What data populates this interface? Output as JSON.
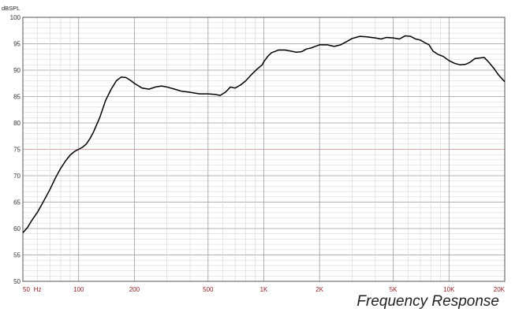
{
  "chart_data": {
    "type": "line",
    "xscale": "log",
    "xlim": [
      50,
      20000
    ],
    "ylim": [
      50,
      100
    ],
    "grid": true,
    "ylabel": "dBSPL",
    "yticks": [
      "50",
      "55",
      "60",
      "65",
      "70",
      "75",
      "80",
      "85",
      "90",
      "95",
      "100"
    ],
    "xticks": [
      {
        "value": 50,
        "label": "50"
      },
      {
        "value": 60,
        "label": "Hz"
      },
      {
        "value": 100,
        "label": "100"
      },
      {
        "value": 200,
        "label": "200"
      },
      {
        "value": 500,
        "label": "500"
      },
      {
        "value": 1000,
        "label": "1K"
      },
      {
        "value": 2000,
        "label": "2K"
      },
      {
        "value": 5000,
        "label": "5K"
      },
      {
        "value": 10000,
        "label": "10K"
      },
      {
        "value": 20000,
        "label": "20K"
      }
    ],
    "reference_line": 75,
    "series": [
      {
        "points": [
          [
            50,
            59.2
          ],
          [
            53,
            60.2
          ],
          [
            56,
            61.6
          ],
          [
            60,
            63.1
          ],
          [
            65,
            65.3
          ],
          [
            70,
            67.4
          ],
          [
            75,
            69.6
          ],
          [
            80,
            71.4
          ],
          [
            85,
            72.8
          ],
          [
            90,
            73.9
          ],
          [
            95,
            74.6
          ],
          [
            100,
            75.0
          ],
          [
            105,
            75.4
          ],
          [
            110,
            76.0
          ],
          [
            115,
            77.0
          ],
          [
            120,
            78.2
          ],
          [
            130,
            81.0
          ],
          [
            140,
            84.3
          ],
          [
            150,
            86.4
          ],
          [
            160,
            88.0
          ],
          [
            170,
            88.7
          ],
          [
            180,
            88.6
          ],
          [
            190,
            88.1
          ],
          [
            200,
            87.5
          ],
          [
            220,
            86.6
          ],
          [
            240,
            86.4
          ],
          [
            260,
            86.8
          ],
          [
            280,
            87.0
          ],
          [
            300,
            86.8
          ],
          [
            330,
            86.4
          ],
          [
            360,
            86.0
          ],
          [
            400,
            85.8
          ],
          [
            450,
            85.5
          ],
          [
            500,
            85.5
          ],
          [
            550,
            85.4
          ],
          [
            580,
            85.2
          ],
          [
            620,
            85.8
          ],
          [
            660,
            86.8
          ],
          [
            700,
            86.6
          ],
          [
            750,
            87.2
          ],
          [
            800,
            88.0
          ],
          [
            860,
            89.2
          ],
          [
            920,
            90.2
          ],
          [
            980,
            91.0
          ],
          [
            1000,
            91.6
          ],
          [
            1050,
            92.6
          ],
          [
            1100,
            93.3
          ],
          [
            1200,
            93.8
          ],
          [
            1300,
            93.8
          ],
          [
            1400,
            93.6
          ],
          [
            1500,
            93.4
          ],
          [
            1600,
            93.5
          ],
          [
            1700,
            94.0
          ],
          [
            1800,
            94.2
          ],
          [
            1900,
            94.5
          ],
          [
            2000,
            94.8
          ],
          [
            2200,
            94.8
          ],
          [
            2400,
            94.5
          ],
          [
            2600,
            94.8
          ],
          [
            2800,
            95.4
          ],
          [
            3000,
            96.0
          ],
          [
            3300,
            96.4
          ],
          [
            3600,
            96.3
          ],
          [
            4000,
            96.1
          ],
          [
            4300,
            95.9
          ],
          [
            4600,
            96.2
          ],
          [
            5000,
            96.1
          ],
          [
            5400,
            95.9
          ],
          [
            5800,
            96.5
          ],
          [
            6200,
            96.4
          ],
          [
            6600,
            95.9
          ],
          [
            7000,
            95.7
          ],
          [
            7400,
            95.2
          ],
          [
            7800,
            94.8
          ],
          [
            8200,
            93.6
          ],
          [
            8700,
            93.0
          ],
          [
            9300,
            92.6
          ],
          [
            10000,
            91.8
          ],
          [
            10700,
            91.3
          ],
          [
            11500,
            91.0
          ],
          [
            12300,
            91.1
          ],
          [
            13000,
            91.5
          ],
          [
            13800,
            92.2
          ],
          [
            14600,
            92.3
          ],
          [
            15500,
            92.4
          ],
          [
            16400,
            91.5
          ],
          [
            17500,
            90.3
          ],
          [
            18500,
            89.1
          ],
          [
            20000,
            87.8
          ]
        ]
      }
    ]
  },
  "caption": "Frequency Response",
  "colors": {
    "curve": "#000000",
    "grid_major": "#9a9a9a",
    "grid_minor": "#cfcfcf",
    "tick_labels": "#8b1a1a",
    "reference_line": "#c98a8a",
    "frame": "#555555"
  }
}
